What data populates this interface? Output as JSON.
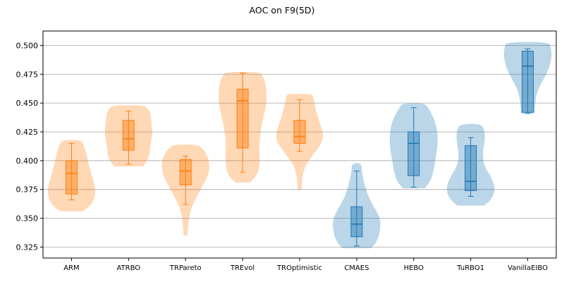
{
  "chart_data": {
    "type": "violin",
    "title": "AOC on F9(5D)",
    "xlabel": "",
    "ylabel": "",
    "ylim": [
      0.3155,
      0.5125
    ],
    "yticks": [
      0.325,
      0.35,
      0.375,
      0.4,
      0.425,
      0.45,
      0.475,
      0.5
    ],
    "ytick_labels": [
      "0.325",
      "0.350",
      "0.375",
      "0.400",
      "0.425",
      "0.450",
      "0.475",
      "0.500"
    ],
    "grid": "horizontal",
    "colors": {
      "orange": "#ff7f0e",
      "blue": "#1f77b4",
      "grid": "#b0b0b0"
    },
    "groups": [
      {
        "name": "ARM",
        "color": "orange",
        "whisker_low": 0.366,
        "q1": 0.371,
        "median": 0.389,
        "q3": 0.4,
        "whisker_high": 0.415,
        "violin_range": [
          0.356,
          0.418
        ],
        "density": [
          [
            0.356,
            0.45
          ],
          [
            0.36,
            0.75
          ],
          [
            0.366,
            0.93
          ],
          [
            0.372,
            1.0
          ],
          [
            0.378,
            0.97
          ],
          [
            0.385,
            0.88
          ],
          [
            0.392,
            0.78
          ],
          [
            0.4,
            0.68
          ],
          [
            0.408,
            0.6
          ],
          [
            0.414,
            0.5
          ],
          [
            0.418,
            0.4
          ]
        ]
      },
      {
        "name": "ATRBO",
        "color": "orange",
        "whisker_low": 0.397,
        "q1": 0.409,
        "median": 0.419,
        "q3": 0.435,
        "whisker_high": 0.443,
        "violin_range": [
          0.395,
          0.448
        ],
        "density": [
          [
            0.395,
            0.6
          ],
          [
            0.4,
            0.78
          ],
          [
            0.406,
            0.88
          ],
          [
            0.412,
            0.9
          ],
          [
            0.418,
            0.95
          ],
          [
            0.424,
            1.0
          ],
          [
            0.43,
            0.97
          ],
          [
            0.436,
            0.95
          ],
          [
            0.442,
            0.9
          ],
          [
            0.446,
            0.78
          ],
          [
            0.448,
            0.6
          ]
        ]
      },
      {
        "name": "TRPareto",
        "color": "orange",
        "whisker_low": 0.362,
        "q1": 0.379,
        "median": 0.391,
        "q3": 0.401,
        "whisker_high": 0.404,
        "violin_range": [
          0.335,
          0.414
        ],
        "density": [
          [
            0.335,
            0.08
          ],
          [
            0.342,
            0.1
          ],
          [
            0.35,
            0.14
          ],
          [
            0.358,
            0.22
          ],
          [
            0.366,
            0.4
          ],
          [
            0.374,
            0.6
          ],
          [
            0.382,
            0.82
          ],
          [
            0.39,
            0.98
          ],
          [
            0.398,
            1.0
          ],
          [
            0.406,
            0.88
          ],
          [
            0.411,
            0.68
          ],
          [
            0.414,
            0.5
          ]
        ]
      },
      {
        "name": "TREvol",
        "color": "orange",
        "whisker_low": 0.39,
        "q1": 0.411,
        "median": 0.452,
        "q3": 0.462,
        "whisker_high": 0.476,
        "violin_range": [
          0.381,
          0.477
        ],
        "density": [
          [
            0.381,
            0.3
          ],
          [
            0.386,
            0.55
          ],
          [
            0.392,
            0.68
          ],
          [
            0.4,
            0.72
          ],
          [
            0.41,
            0.7
          ],
          [
            0.42,
            0.72
          ],
          [
            0.43,
            0.78
          ],
          [
            0.44,
            0.9
          ],
          [
            0.45,
            1.0
          ],
          [
            0.46,
            1.0
          ],
          [
            0.468,
            0.95
          ],
          [
            0.474,
            0.82
          ],
          [
            0.477,
            0.7
          ]
        ]
      },
      {
        "name": "TROptimistic",
        "color": "orange",
        "whisker_low": 0.408,
        "q1": 0.415,
        "median": 0.421,
        "q3": 0.435,
        "whisker_high": 0.453,
        "violin_range": [
          0.375,
          0.458
        ],
        "density": [
          [
            0.375,
            0.08
          ],
          [
            0.382,
            0.1
          ],
          [
            0.39,
            0.15
          ],
          [
            0.398,
            0.3
          ],
          [
            0.406,
            0.6
          ],
          [
            0.414,
            0.88
          ],
          [
            0.42,
            1.0
          ],
          [
            0.426,
            0.95
          ],
          [
            0.434,
            0.82
          ],
          [
            0.442,
            0.7
          ],
          [
            0.45,
            0.62
          ],
          [
            0.456,
            0.55
          ],
          [
            0.458,
            0.5
          ]
        ]
      },
      {
        "name": "CMAES",
        "color": "blue",
        "whisker_low": 0.326,
        "q1": 0.334,
        "median": 0.345,
        "q3": 0.36,
        "whisker_high": 0.391,
        "violin_range": [
          0.324,
          0.398
        ],
        "density": [
          [
            0.324,
            0.6
          ],
          [
            0.328,
            0.78
          ],
          [
            0.334,
            0.92
          ],
          [
            0.342,
            1.0
          ],
          [
            0.35,
            0.98
          ],
          [
            0.358,
            0.78
          ],
          [
            0.366,
            0.55
          ],
          [
            0.374,
            0.4
          ],
          [
            0.382,
            0.3
          ],
          [
            0.39,
            0.22
          ],
          [
            0.398,
            0.2
          ]
        ]
      },
      {
        "name": "HEBO",
        "color": "blue",
        "whisker_low": 0.377,
        "q1": 0.387,
        "median": 0.415,
        "q3": 0.425,
        "whisker_high": 0.446,
        "violin_range": [
          0.376,
          0.45
        ],
        "density": [
          [
            0.376,
            0.45
          ],
          [
            0.382,
            0.7
          ],
          [
            0.39,
            0.82
          ],
          [
            0.398,
            0.88
          ],
          [
            0.406,
            0.95
          ],
          [
            0.414,
            1.0
          ],
          [
            0.422,
            1.0
          ],
          [
            0.43,
            0.95
          ],
          [
            0.438,
            0.82
          ],
          [
            0.446,
            0.6
          ],
          [
            0.45,
            0.45
          ]
        ]
      },
      {
        "name": "TuRBO1",
        "color": "blue",
        "whisker_low": 0.369,
        "q1": 0.374,
        "median": 0.382,
        "q3": 0.413,
        "whisker_high": 0.42,
        "violin_range": [
          0.361,
          0.432
        ],
        "density": [
          [
            0.361,
            0.55
          ],
          [
            0.365,
            0.8
          ],
          [
            0.371,
            0.98
          ],
          [
            0.378,
            1.0
          ],
          [
            0.386,
            0.85
          ],
          [
            0.394,
            0.6
          ],
          [
            0.402,
            0.5
          ],
          [
            0.41,
            0.52
          ],
          [
            0.418,
            0.6
          ],
          [
            0.426,
            0.58
          ],
          [
            0.432,
            0.45
          ]
        ]
      },
      {
        "name": "VanillaEIBO",
        "color": "blue",
        "whisker_low": 0.441,
        "q1": 0.442,
        "median": 0.482,
        "q3": 0.495,
        "whisker_high": 0.497,
        "violin_range": [
          0.441,
          0.503
        ],
        "density": [
          [
            0.441,
            0.28
          ],
          [
            0.446,
            0.3
          ],
          [
            0.452,
            0.32
          ],
          [
            0.46,
            0.4
          ],
          [
            0.468,
            0.58
          ],
          [
            0.476,
            0.8
          ],
          [
            0.484,
            0.95
          ],
          [
            0.492,
            1.0
          ],
          [
            0.498,
            0.97
          ],
          [
            0.503,
            0.9
          ]
        ]
      }
    ]
  }
}
